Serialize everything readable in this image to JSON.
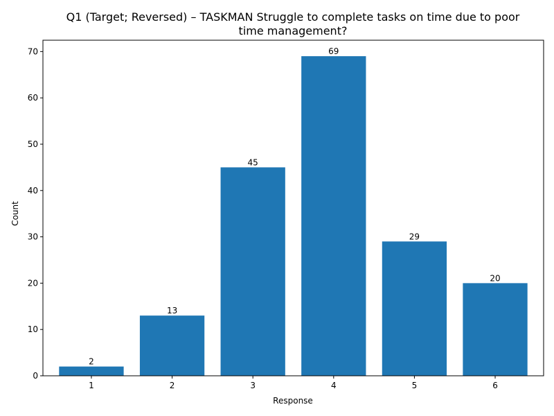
{
  "chart_data": {
    "type": "bar",
    "title_lines": [
      "Q1 (Target; Reversed) – TASKMAN Struggle to complete tasks on time due to poor",
      "time management?"
    ],
    "xlabel": "Response",
    "ylabel": "Count",
    "categories": [
      "1",
      "2",
      "3",
      "4",
      "5",
      "6"
    ],
    "values": [
      2,
      13,
      45,
      69,
      29,
      20
    ],
    "ylim": [
      0,
      72.45
    ],
    "yticks": [
      0,
      10,
      20,
      30,
      40,
      50,
      60,
      70
    ],
    "bar_color": "#1f77b4",
    "grid": false
  }
}
